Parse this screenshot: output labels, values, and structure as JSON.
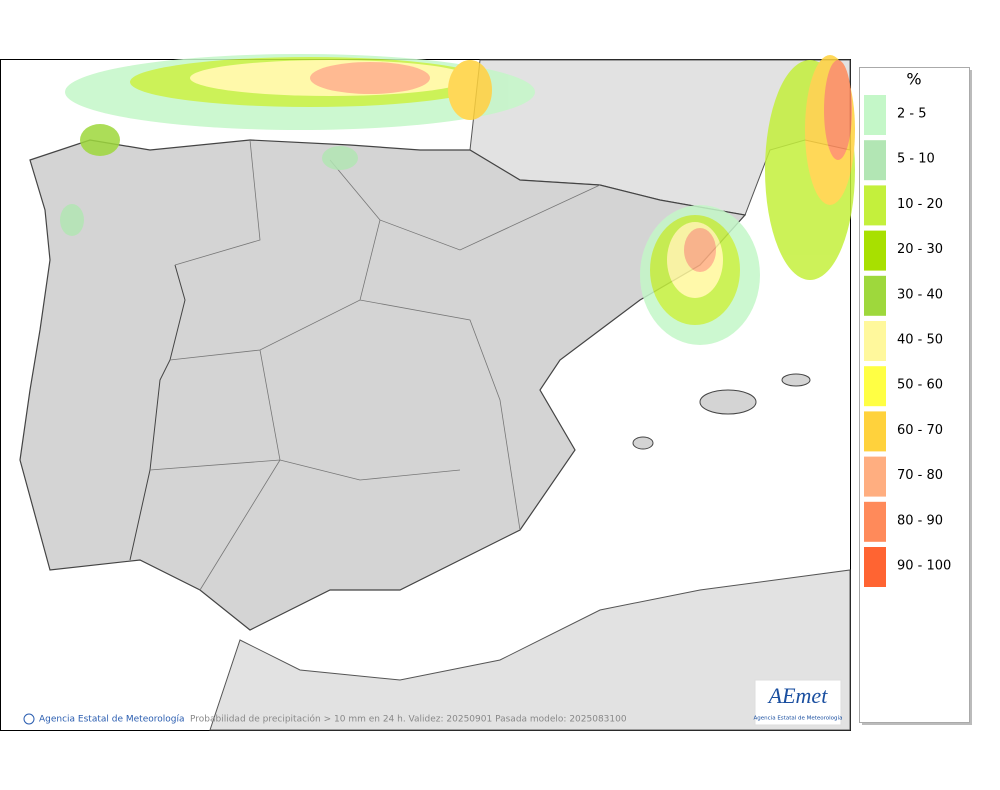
{
  "map": {
    "credit": "Agencia Estatal de Meteorología",
    "caption": "Probabilidad de precipitación > 10 mm en 24 h. Validez: 20250901 Pasada modelo: 2025083100",
    "logo": {
      "name": "AEmet",
      "subtitle": "Agencia Estatal de Meteorología"
    }
  },
  "legend": {
    "title": "%",
    "items": [
      {
        "label": "2 - 5",
        "color": "#c4f7c8"
      },
      {
        "label": "5 - 10",
        "color": "#b2e6b4"
      },
      {
        "label": "10 - 20",
        "color": "#c4f03c"
      },
      {
        "label": "20 - 30",
        "color": "#a8e000"
      },
      {
        "label": "30 - 40",
        "color": "#9ed83c"
      },
      {
        "label": "40 - 50",
        "color": "#fff89c"
      },
      {
        "label": "50 - 60",
        "color": "#ffff44"
      },
      {
        "label": "60 - 70",
        "color": "#ffd23c"
      },
      {
        "label": "70 - 80",
        "color": "#ffae80"
      },
      {
        "label": "80 - 90",
        "color": "#ff8a5a"
      },
      {
        "label": "90 - 100",
        "color": "#ff6432"
      }
    ]
  }
}
